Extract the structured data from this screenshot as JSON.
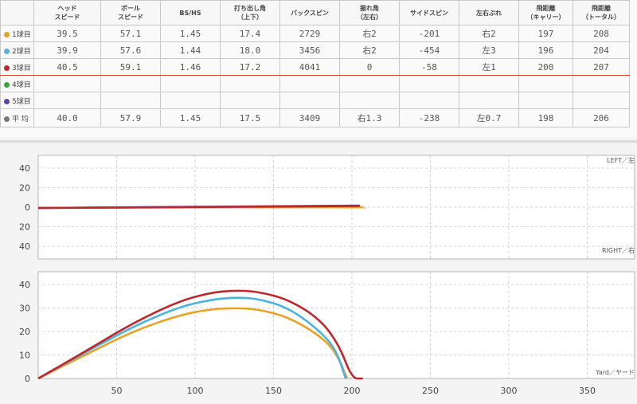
{
  "table": {
    "headers": [
      {
        "l1": "",
        "l2": ""
      },
      {
        "l1": "ヘッド",
        "l2": "スピード"
      },
      {
        "l1": "ボール",
        "l2": "スピード"
      },
      {
        "l1": "BS/HS",
        "l2": ""
      },
      {
        "l1": "打ち出し角",
        "l2": "（上下）"
      },
      {
        "l1": "バックスピン",
        "l2": ""
      },
      {
        "l1": "振れ角",
        "l2": "（左右）"
      },
      {
        "l1": "サイドスピン",
        "l2": ""
      },
      {
        "l1": "左右ぶれ",
        "l2": ""
      },
      {
        "l1": "飛距離",
        "l2": "（キャリー）"
      },
      {
        "l1": "飛距離",
        "l2": "（トータル）"
      }
    ],
    "rows": [
      {
        "label": "1球目",
        "color": "#e8a22a",
        "cells": [
          "39.5",
          "57.1",
          "1.45",
          "17.4",
          "2729",
          "右2",
          "-201",
          "右2",
          "197",
          "208"
        ]
      },
      {
        "label": "2球目",
        "color": "#4bb3dd",
        "cells": [
          "39.9",
          "57.6",
          "1.44",
          "18.0",
          "3456",
          "右2",
          "-454",
          "左3",
          "196",
          "204"
        ]
      },
      {
        "label": "3球目",
        "color": "#c0262b",
        "cells": [
          "40.5",
          "59.1",
          "1.46",
          "17.2",
          "4041",
          "0",
          "-58",
          "左1",
          "200",
          "207"
        ]
      },
      {
        "label": "4球目",
        "color": "#3aa63a",
        "cells": [
          "",
          "",
          "",
          "",
          "",
          "",
          "",
          "",
          "",
          ""
        ]
      },
      {
        "label": "5球目",
        "color": "#5b47a8",
        "cells": [
          "",
          "",
          "",
          "",
          "",
          "",
          "",
          "",
          "",
          ""
        ]
      },
      {
        "label": "平 均",
        "color": "#777777",
        "cells": [
          "40.0",
          "57.9",
          "1.45",
          "17.5",
          "3409",
          "右1.3",
          "-238",
          "左0.7",
          "198",
          "206"
        ]
      }
    ]
  },
  "chart_data": [
    {
      "type": "line",
      "view": "top",
      "corner_labels": {
        "top": "LEFT／左",
        "bottom": "RIGHT／右"
      },
      "y_ticks": [
        "40",
        "20",
        "0",
        "20",
        "40"
      ],
      "series": [
        {
          "color": "#e8a22a",
          "x": [
            0,
            207
          ],
          "y": [
            0,
            1
          ]
        },
        {
          "color": "#4bb3dd",
          "x": [
            0,
            205
          ],
          "y": [
            0,
            2
          ]
        },
        {
          "color": "#5b47a8",
          "x": [
            0,
            205
          ],
          "y": [
            0,
            2.5
          ]
        },
        {
          "color": "#c0262b",
          "x": [
            0,
            205
          ],
          "y": [
            0,
            2
          ]
        }
      ]
    },
    {
      "type": "line",
      "view": "side",
      "corner_labels": {
        "bottom": "Yard／ヤード"
      },
      "x_ticks": [
        "50",
        "100",
        "150",
        "200",
        "250",
        "300",
        "350"
      ],
      "y_ticks": [
        "40",
        "30",
        "20",
        "10",
        "0"
      ],
      "series": [
        {
          "color": "#e8a22a",
          "points": [
            [
              0,
              0
            ],
            [
              30,
              10
            ],
            [
              60,
              20
            ],
            [
              90,
              27
            ],
            [
              110,
              29.5
            ],
            [
              125,
              30
            ],
            [
              140,
              29.5
            ],
            [
              160,
              26
            ],
            [
              180,
              18
            ],
            [
              190,
              11
            ],
            [
              197,
              0
            ]
          ]
        },
        {
          "color": "#4bb3dd",
          "points": [
            [
              0,
              0
            ],
            [
              30,
              11
            ],
            [
              60,
              22
            ],
            [
              90,
              30.5
            ],
            [
              110,
              33.5
            ],
            [
              125,
              34.5
            ],
            [
              140,
              34
            ],
            [
              160,
              30
            ],
            [
              180,
              20
            ],
            [
              190,
              12
            ],
            [
              196,
              0
            ]
          ]
        },
        {
          "color": "#c0262b",
          "points": [
            [
              0,
              0
            ],
            [
              30,
              11.5
            ],
            [
              60,
              23.5
            ],
            [
              90,
              33
            ],
            [
              110,
              36.5
            ],
            [
              125,
              37.5
            ],
            [
              140,
              37
            ],
            [
              160,
              33.5
            ],
            [
              180,
              25
            ],
            [
              192,
              14
            ],
            [
              200,
              0
            ],
            [
              207,
              0
            ]
          ]
        }
      ]
    }
  ]
}
